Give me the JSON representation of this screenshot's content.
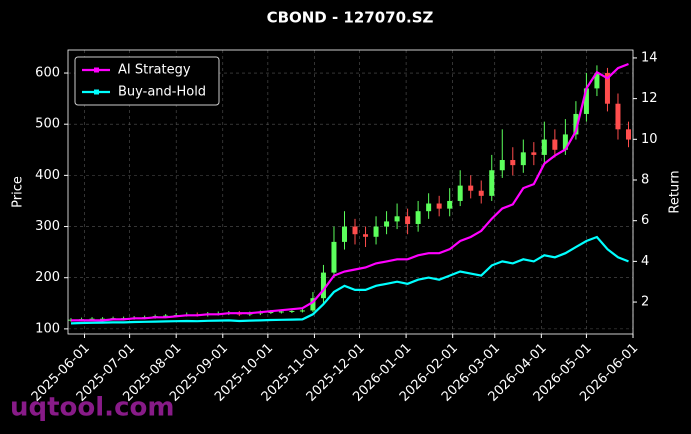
{
  "chart_data": {
    "type": "candlestick",
    "title": "CBOND - 127070.SZ",
    "ylabel": "Price",
    "y2label": "Return",
    "watermark": "uqtool.com",
    "x": [
      "2025-05-23",
      "2025-05-30",
      "2025-06-06",
      "2025-06-13",
      "2025-06-20",
      "2025-06-27",
      "2025-07-04",
      "2025-07-11",
      "2025-07-18",
      "2025-07-25",
      "2025-08-01",
      "2025-08-08",
      "2025-08-15",
      "2025-08-22",
      "2025-08-29",
      "2025-09-05",
      "2025-09-12",
      "2025-09-19",
      "2025-09-26",
      "2025-10-03",
      "2025-10-10",
      "2025-10-17",
      "2025-10-24",
      "2025-10-31",
      "2025-11-07",
      "2025-11-14",
      "2025-11-21",
      "2025-11-28",
      "2025-12-05",
      "2025-12-12",
      "2025-12-19",
      "2025-12-26",
      "2026-01-02",
      "2026-01-09",
      "2026-01-16",
      "2026-01-23",
      "2026-01-30",
      "2026-02-06",
      "2026-02-13",
      "2026-02-20",
      "2026-02-27",
      "2026-03-06",
      "2026-03-13",
      "2026-03-20",
      "2026-03-27",
      "2026-04-03",
      "2026-04-10",
      "2026-04-17",
      "2026-04-24",
      "2026-05-01",
      "2026-05-08",
      "2026-05-15",
      "2026-05-22",
      "2026-05-29"
    ],
    "open": [
      117,
      118,
      119,
      120,
      120,
      121,
      121,
      122,
      123,
      125,
      126,
      127,
      128,
      127,
      129,
      130,
      131,
      128,
      130,
      132,
      133,
      134,
      135,
      136,
      160,
      210,
      270,
      300,
      285,
      280,
      300,
      310,
      320,
      305,
      330,
      345,
      335,
      350,
      380,
      370,
      360,
      410,
      430,
      420,
      445,
      440,
      470,
      450,
      480,
      520,
      570,
      600,
      540,
      490
    ],
    "high": [
      121,
      122,
      123,
      123,
      124,
      124,
      125,
      126,
      128,
      129,
      131,
      132,
      132,
      133,
      134,
      135,
      135,
      134,
      136,
      137,
      138,
      139,
      140,
      172,
      225,
      300,
      330,
      315,
      300,
      320,
      330,
      345,
      335,
      350,
      365,
      360,
      375,
      410,
      400,
      390,
      440,
      490,
      455,
      470,
      465,
      505,
      490,
      510,
      545,
      600,
      615,
      610,
      560,
      505
    ],
    "low": [
      114,
      115,
      116,
      117,
      117,
      118,
      118,
      119,
      120,
      122,
      123,
      124,
      124,
      124,
      126,
      127,
      125,
      125,
      127,
      129,
      130,
      131,
      132,
      133,
      150,
      200,
      255,
      265,
      260,
      265,
      285,
      295,
      285,
      290,
      315,
      320,
      320,
      340,
      355,
      345,
      350,
      395,
      400,
      405,
      420,
      425,
      435,
      440,
      470,
      505,
      555,
      525,
      470,
      455
    ],
    "close": [
      118,
      119,
      120,
      120,
      121,
      121,
      122,
      123,
      125,
      126,
      127,
      128,
      127,
      129,
      130,
      131,
      128,
      130,
      132,
      133,
      134,
      135,
      136,
      160,
      210,
      270,
      300,
      285,
      280,
      300,
      310,
      320,
      305,
      330,
      345,
      335,
      350,
      380,
      370,
      360,
      410,
      430,
      420,
      445,
      440,
      470,
      450,
      480,
      520,
      570,
      600,
      540,
      490,
      470
    ],
    "up_color": "#5cff5c",
    "down_color": "#ff4d4d",
    "series": [
      {
        "name": "AI Strategy",
        "color": "#ff00ff",
        "axis": "y2",
        "values": [
          1.1,
          1.1,
          1.1,
          1.1,
          1.15,
          1.15,
          1.2,
          1.2,
          1.25,
          1.25,
          1.3,
          1.35,
          1.35,
          1.4,
          1.4,
          1.45,
          1.45,
          1.45,
          1.5,
          1.55,
          1.6,
          1.65,
          1.7,
          2.0,
          2.6,
          3.3,
          3.5,
          3.6,
          3.7,
          3.9,
          4.0,
          4.1,
          4.1,
          4.3,
          4.4,
          4.4,
          4.6,
          5.0,
          5.2,
          5.5,
          6.1,
          6.6,
          6.8,
          7.6,
          7.8,
          8.8,
          9.2,
          9.5,
          10.4,
          12.5,
          13.3,
          13.0,
          13.5,
          13.7
        ]
      },
      {
        "name": "Buy-and-Hold",
        "color": "#00ffff",
        "axis": "y2",
        "values": [
          0.95,
          0.97,
          0.98,
          0.99,
          1.0,
          1.0,
          1.02,
          1.03,
          1.04,
          1.05,
          1.06,
          1.07,
          1.06,
          1.08,
          1.09,
          1.1,
          1.07,
          1.09,
          1.1,
          1.12,
          1.13,
          1.14,
          1.15,
          1.4,
          1.9,
          2.5,
          2.8,
          2.6,
          2.6,
          2.8,
          2.9,
          3.0,
          2.9,
          3.1,
          3.2,
          3.1,
          3.3,
          3.5,
          3.4,
          3.3,
          3.8,
          4.0,
          3.9,
          4.1,
          4.0,
          4.3,
          4.2,
          4.4,
          4.7,
          5.0,
          5.2,
          4.6,
          4.2,
          4.0
        ]
      }
    ],
    "xlim": [
      "2025-05-21",
      "2026-06-01"
    ],
    "xticks": [
      "2025-06-01",
      "2025-07-01",
      "2025-08-01",
      "2025-09-01",
      "2025-10-01",
      "2025-11-01",
      "2025-12-01",
      "2026-01-01",
      "2026-02-01",
      "2026-03-01",
      "2026-04-01",
      "2026-05-01",
      "2026-06-01"
    ],
    "ylim": [
      90,
      645
    ],
    "yticks": [
      100,
      200,
      300,
      400,
      500,
      600
    ],
    "y2lim": [
      0.43,
      14.39
    ],
    "y2ticks": [
      2,
      4,
      6,
      8,
      10,
      12,
      14
    ],
    "grid": true,
    "legend": "upper left"
  }
}
